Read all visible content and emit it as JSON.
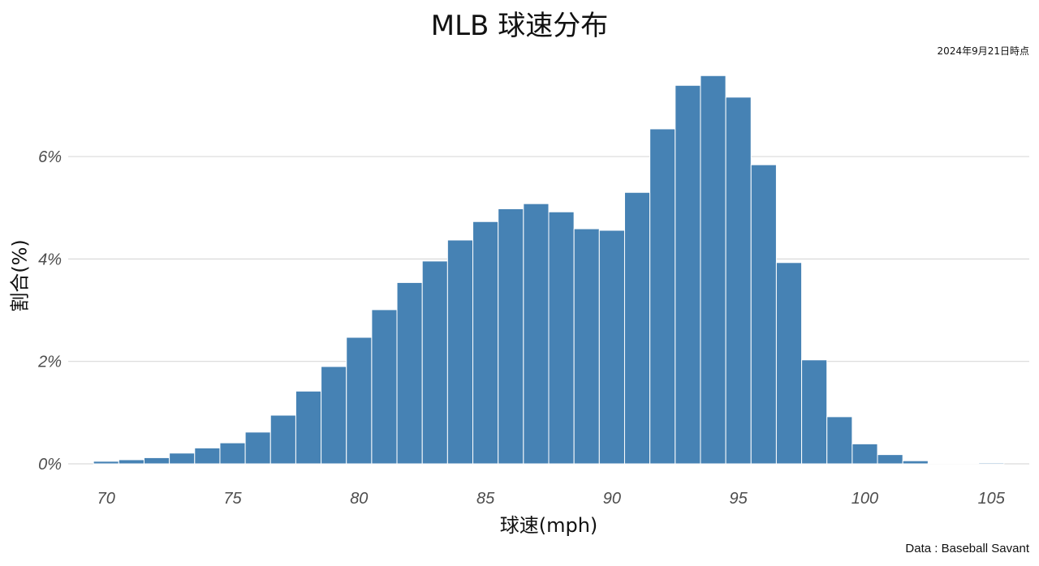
{
  "chart_data": {
    "type": "bar",
    "title": "MLB 球速分布",
    "subtitle": "2024年9月21日時点",
    "caption": "Data : Baseball Savant",
    "xlabel": "球速(mph)",
    "ylabel": "割合(%)",
    "bin_width": 1,
    "x": [
      70,
      71,
      72,
      73,
      74,
      75,
      76,
      77,
      78,
      79,
      80,
      81,
      82,
      83,
      84,
      85,
      86,
      87,
      88,
      89,
      90,
      91,
      92,
      93,
      94,
      95,
      96,
      97,
      98,
      99,
      100,
      101,
      102,
      103,
      104,
      105
    ],
    "values": [
      0.05,
      0.08,
      0.12,
      0.21,
      0.31,
      0.41,
      0.62,
      0.95,
      1.42,
      1.9,
      2.47,
      3.01,
      3.54,
      3.96,
      4.37,
      4.73,
      4.98,
      5.08,
      4.92,
      4.59,
      4.56,
      5.3,
      6.54,
      7.39,
      7.58,
      7.16,
      5.84,
      3.93,
      2.03,
      0.92,
      0.39,
      0.18,
      0.06,
      0.01,
      0.01,
      0.02
    ],
    "xlim": [
      68.5,
      106.5
    ],
    "ylim": [
      0,
      7.6
    ],
    "x_ticks": [
      70,
      75,
      80,
      85,
      90,
      95,
      100,
      105
    ],
    "x_tick_labels": [
      "70",
      "75",
      "80",
      "85",
      "90",
      "95",
      "100",
      "105"
    ],
    "y_ticks": [
      0,
      2,
      4,
      6
    ],
    "y_tick_labels": [
      "0%",
      "2%",
      "4%",
      "6%"
    ],
    "grid": true,
    "bar_color": "#4682B4",
    "grid_color": "#d9d9d9"
  }
}
